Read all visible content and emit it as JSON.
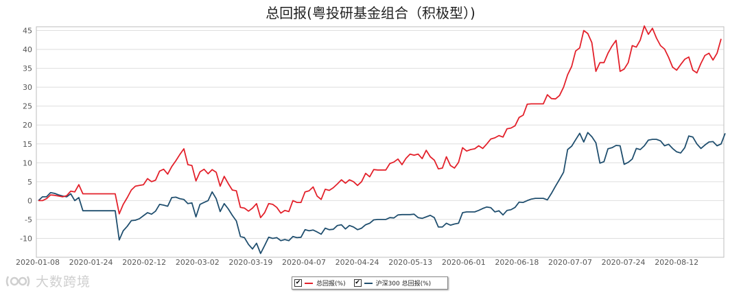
{
  "watermark": {
    "text": "大数跨境"
  },
  "legend": {
    "items": [
      {
        "label": "总回报(%)",
        "color": "#e3202a",
        "checked": "✔"
      },
      {
        "label": "沪深300 总回报(%)",
        "color": "#1f4e6e",
        "checked": "✔"
      }
    ]
  },
  "chart_data": {
    "type": "line",
    "title": "总回报(粤投研基金组合（积极型）)",
    "xlabel": "",
    "ylabel": "",
    "ylim": [
      -15,
      46
    ],
    "yticks": [
      45,
      40,
      35,
      30,
      25,
      20,
      15,
      10,
      5,
      0,
      -5,
      -10
    ],
    "xticks": [
      "2020-01-08",
      "2020-01-24",
      "2020-02-12",
      "2020-03-02",
      "2020-03-19",
      "2020-04-07",
      "2020-04-24",
      "2020-05-13",
      "2020-06-01",
      "2020-06-18",
      "2020-07-07",
      "2020-07-24",
      "2020-08-12"
    ],
    "grid": "horizontal",
    "legend_position": "bottom",
    "series": [
      {
        "name": "总回报(%)",
        "color": "#e3202a",
        "values": [
          0,
          0,
          0.5,
          1.5,
          1.4,
          1.2,
          1.0,
          1.3,
          2.5,
          2.3,
          4.2,
          1.8,
          1.8,
          1.8,
          1.8,
          1.8,
          1.8,
          1.8,
          1.8,
          1.8,
          -3.5,
          -1.0,
          0.8,
          2.8,
          3.8,
          4.0,
          4.2,
          5.8,
          5.0,
          5.4,
          7.8,
          8.3,
          7.0,
          9.0,
          10.5,
          12.2,
          13.7,
          9.5,
          9.3,
          5.2,
          7.6,
          8.3,
          7.1,
          8.2,
          7.5,
          3.8,
          6.4,
          4.5,
          2.8,
          2.6,
          -1.8,
          -2.0,
          -2.8,
          -2.0,
          -0.8,
          -4.5,
          -3.2,
          -0.8,
          -1.0,
          -1.8,
          -3.3,
          -2.6,
          -2.9,
          0,
          -0.5,
          -0.5,
          2.3,
          2.6,
          3.6,
          1.2,
          0.3,
          3.0,
          2.7,
          3.4,
          4.4,
          5.5,
          4.6,
          5.5,
          5.0,
          4.0,
          5.0,
          7.2,
          6.3,
          8.2,
          8.1,
          8.1,
          8.1,
          9.8,
          10.2,
          11.0,
          9.5,
          11.2,
          12.3,
          12.0,
          12.3,
          11.1,
          13.3,
          11.6,
          10.7,
          8.4,
          8.6,
          11.6,
          9.3,
          8.6,
          10.1,
          14.0,
          13.1,
          13.5,
          13.7,
          14.5,
          13.8,
          15.0,
          16.3,
          16.6,
          17.2,
          16.8,
          19.0,
          19.2,
          19.8,
          22.0,
          22.6,
          25.5,
          25.6,
          25.6,
          25.6,
          25.6,
          28.0,
          27.0,
          26.9,
          27.8,
          30.0,
          33.3,
          35.5,
          39.6,
          40.4,
          45.0,
          44.2,
          41.8,
          34.2,
          36.5,
          36.5,
          39.0,
          40.9,
          42.4,
          34.2,
          34.8,
          36.5,
          41.0,
          40.6,
          42.5,
          46.2,
          44.0,
          45.6,
          43.0,
          41.0,
          40.1,
          37.9,
          35.3,
          34.5,
          36.0,
          37.4,
          38.0,
          34.5,
          33.8,
          36.3,
          38.4,
          39.0,
          37.2,
          39.0,
          42.8
        ]
      },
      {
        "name": "沪深300 总回报(%)",
        "color": "#1f4e6e",
        "values": [
          0,
          1.0,
          1.0,
          2.1,
          1.9,
          1.5,
          1.2,
          1.0,
          1.8,
          0,
          0.8,
          -2.7,
          -2.7,
          -2.7,
          -2.7,
          -2.7,
          -2.7,
          -2.7,
          -2.7,
          -2.7,
          -10.4,
          -8.0,
          -6.8,
          -5.3,
          -5.2,
          -4.8,
          -4.0,
          -3.2,
          -3.6,
          -2.8,
          -1.0,
          -1.2,
          -1.5,
          0.8,
          0.9,
          0.5,
          0.3,
          -0.8,
          -0.6,
          -4.3,
          -1.0,
          -0.5,
          0,
          2.3,
          0.5,
          -2.9,
          -0.8,
          -2.2,
          -3.9,
          -5.4,
          -9.5,
          -9.8,
          -11.6,
          -12.8,
          -11.3,
          -14.0,
          -11.9,
          -9.7,
          -10.0,
          -9.8,
          -10.6,
          -10.3,
          -10.6,
          -9.5,
          -9.8,
          -9.7,
          -7.7,
          -8.0,
          -7.8,
          -8.3,
          -8.9,
          -7.3,
          -7.7,
          -7.6,
          -6.6,
          -6.4,
          -7.5,
          -6.6,
          -7.0,
          -7.7,
          -7.3,
          -6.4,
          -6.0,
          -5.1,
          -5.0,
          -5.0,
          -5.0,
          -4.5,
          -4.6,
          -3.8,
          -3.7,
          -3.7,
          -3.7,
          -3.6,
          -4.5,
          -4.7,
          -4.3,
          -3.9,
          -4.5,
          -7.0,
          -7.0,
          -6.0,
          -6.5,
          -6.2,
          -6.0,
          -3.2,
          -3.0,
          -3.0,
          -3.0,
          -2.6,
          -2.1,
          -1.7,
          -1.9,
          -3.0,
          -2.7,
          -3.8,
          -2.6,
          -2.4,
          -1.8,
          -0.4,
          -0.5,
          0,
          0.4,
          0.6,
          0.6,
          0.6,
          0.2,
          1.9,
          3.8,
          5.6,
          7.5,
          13.5,
          14.4,
          16.1,
          17.8,
          15.5,
          18.0,
          16.9,
          15.3,
          9.9,
          10.3,
          13.7,
          14.0,
          14.6,
          14.5,
          9.6,
          10.1,
          11.0,
          13.8,
          13.5,
          14.5,
          16.0,
          16.2,
          16.2,
          15.8,
          14.5,
          14.9,
          13.8,
          12.9,
          12.6,
          14.0,
          17.1,
          16.8,
          15.0,
          13.8,
          14.7,
          15.5,
          15.6,
          14.5,
          15.0,
          17.8
        ]
      }
    ]
  }
}
